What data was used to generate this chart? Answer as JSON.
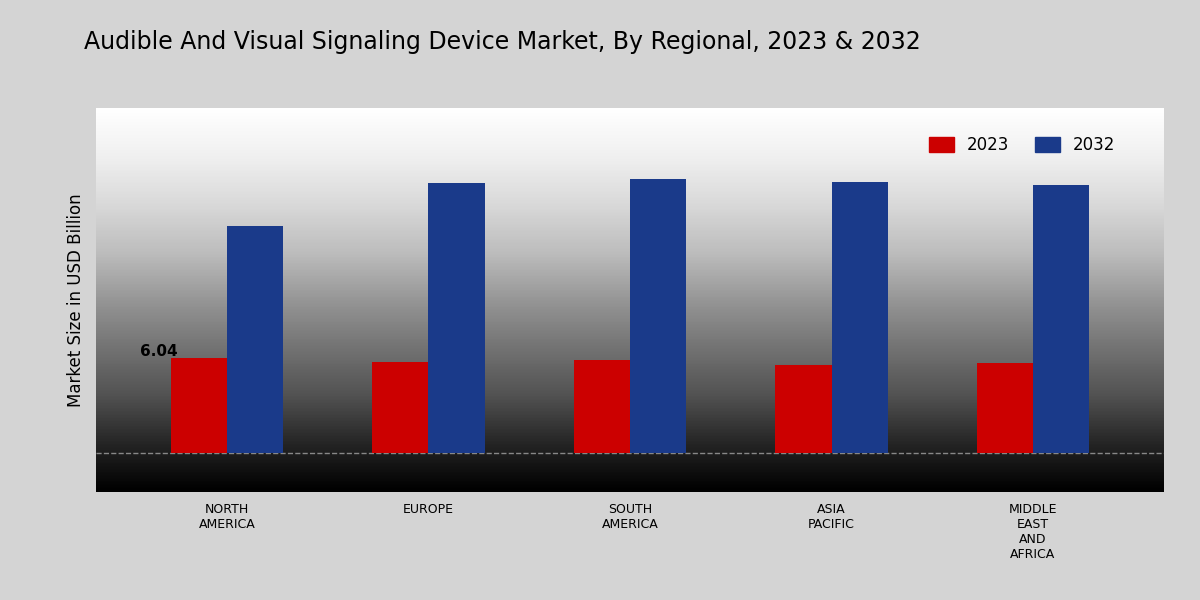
{
  "title": "Audible And Visual Signaling Device Market, By Regional, 2023 & 2032",
  "ylabel": "Market Size in USD Billion",
  "categories": [
    "NORTH\nAMERICA",
    "EUROPE",
    "SOUTH\nAMERICA",
    "ASIA\nPACIFIC",
    "MIDDLE\nEAST\nAND\nAFRICA"
  ],
  "values_2023": [
    6.04,
    5.8,
    5.9,
    5.6,
    5.7
  ],
  "values_2032": [
    14.5,
    17.2,
    17.5,
    17.3,
    17.1
  ],
  "color_2023": "#cc0000",
  "color_2032": "#1a3a8a",
  "annotation_text": "6.04",
  "annotation_region": 0,
  "bar_width": 0.28,
  "legend_labels": [
    "2023",
    "2032"
  ],
  "title_fontsize": 17,
  "axis_label_fontsize": 12,
  "tick_fontsize": 9,
  "legend_fontsize": 12,
  "annotation_fontsize": 11
}
